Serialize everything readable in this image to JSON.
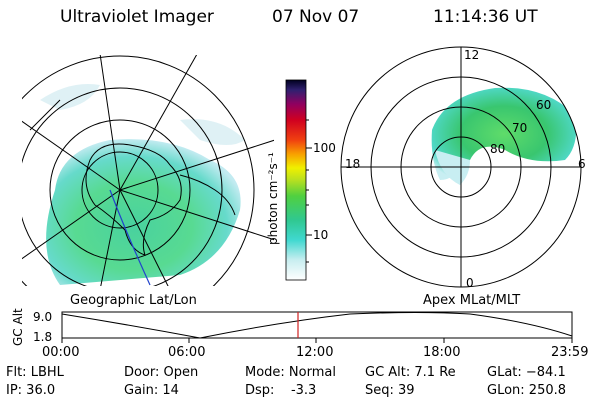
{
  "header": {
    "instrument": "Ultraviolet Imager",
    "date": "07 Nov 07",
    "time": "11:14:36 UT"
  },
  "left_panel": {
    "label": "Geographic Lat/Lon"
  },
  "right_panel": {
    "label": "Apex MLat/MLT",
    "mlt_labels": {
      "top": "12",
      "left": "18",
      "right": "6",
      "bottom": "0"
    },
    "lat_labels": [
      "60",
      "70",
      "80"
    ]
  },
  "colorbar": {
    "unit_label": "photon cm⁻²s⁻¹",
    "tick_labels": [
      "100",
      "10"
    ]
  },
  "altitude_plot": {
    "ylabel": "GC Alt",
    "y_ticks": [
      "9.0",
      "1.8"
    ],
    "x_ticks": [
      "00:00",
      "06:00",
      "12:00",
      "18:00",
      "23:59"
    ]
  },
  "status": {
    "filter": "Flt: LBHL",
    "ip": "IP: 36.0",
    "door": "Door: Open",
    "gain": "Gain: 14",
    "mode": "Mode: Normal",
    "dsp": "Dsp:    -3.3",
    "gc_alt": "GC Alt: 7.1 Re",
    "seq": "Seq: 39",
    "glat": "GLat: −84.1",
    "glon": "GLon: 250.8"
  },
  "colors": {
    "accent_marker": "#d02020",
    "track": "#2244cc"
  }
}
